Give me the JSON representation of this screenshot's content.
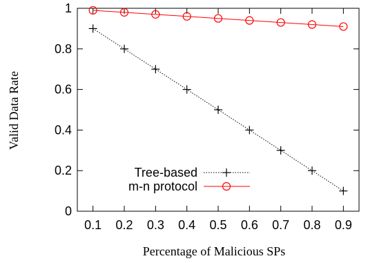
{
  "chart_data": {
    "type": "line",
    "title": "",
    "xlabel": "Percentage of Malicious SPs",
    "ylabel": "Valid Data Rate",
    "xlim": [
      0.05,
      0.95
    ],
    "ylim": [
      0,
      1
    ],
    "x": [
      0.1,
      0.2,
      0.3,
      0.4,
      0.5,
      0.6,
      0.7,
      0.8,
      0.9
    ],
    "x_tick_labels": [
      "0.1",
      "0.2",
      "0.3",
      "0.4",
      "0.5",
      "0.6",
      "0.7",
      "0.8",
      "0.9"
    ],
    "y_ticks": [
      0,
      0.2,
      0.4,
      0.6,
      0.8,
      1
    ],
    "y_tick_labels": [
      "0",
      "0.2",
      "0.4",
      "0.6",
      "0.8",
      "1"
    ],
    "grid": false,
    "legend_position": "bottom-left",
    "series": [
      {
        "name": "Tree-based",
        "values": [
          0.9,
          0.8,
          0.7,
          0.6,
          0.5,
          0.4,
          0.3,
          0.2,
          0.1
        ],
        "color": "#000000",
        "line_style": "dotted",
        "marker": "plus"
      },
      {
        "name": "m-n protocol",
        "values": [
          0.99,
          0.98,
          0.97,
          0.96,
          0.95,
          0.94,
          0.93,
          0.92,
          0.91
        ],
        "color": "#ff0000",
        "line_style": "solid",
        "marker": "circle"
      }
    ]
  }
}
